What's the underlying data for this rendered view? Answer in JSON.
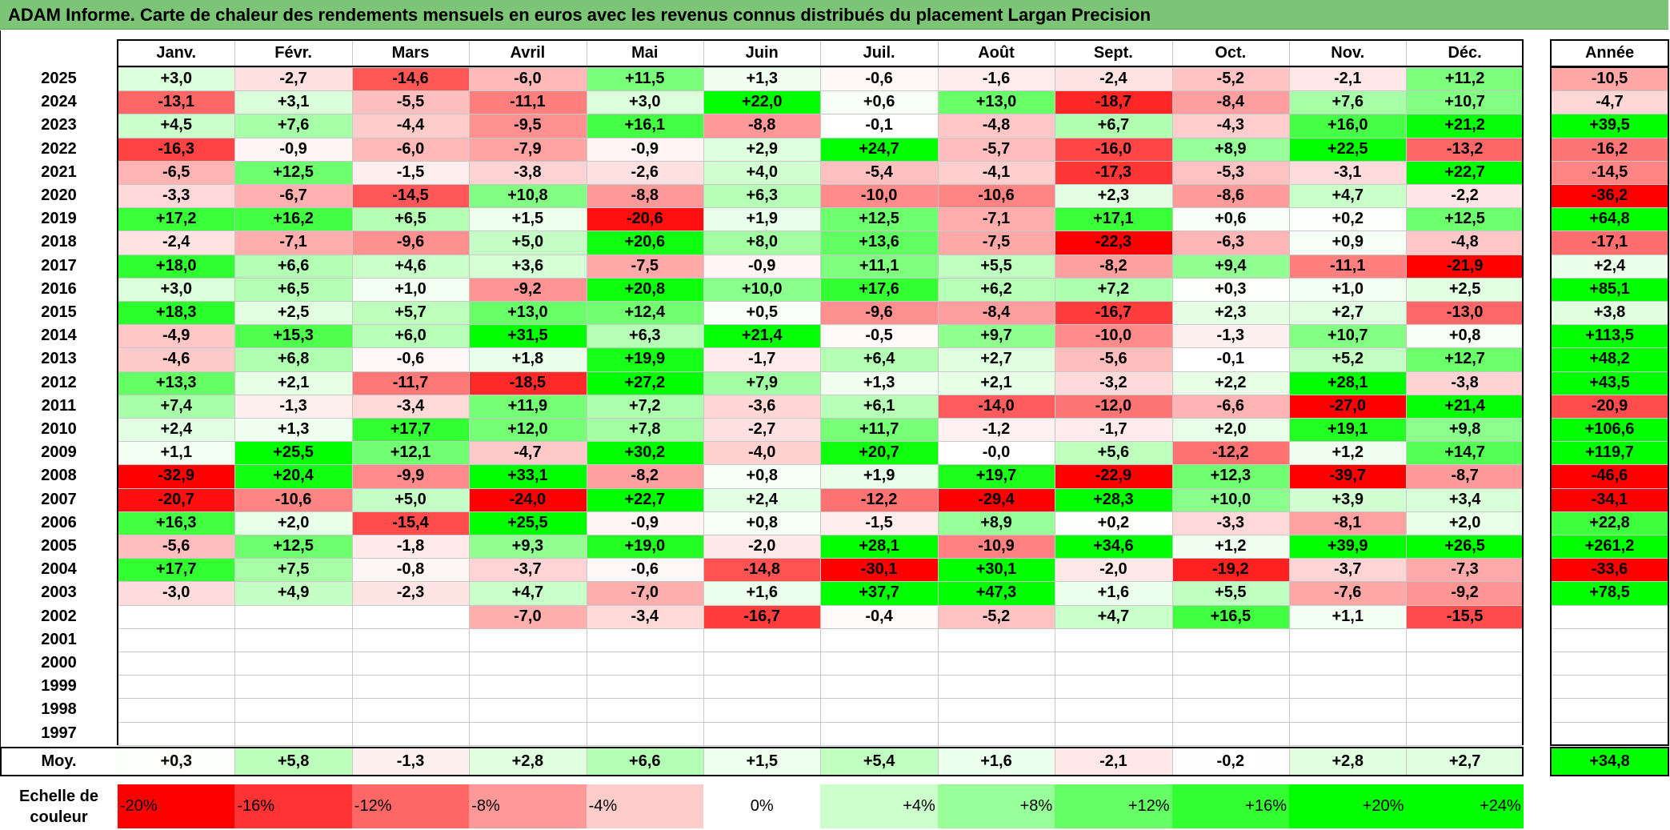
{
  "title": "ADAM Informe. Carte de chaleur des rendements mensuels en euros avec les revenus connus distribués du placement Largan Precision",
  "chart_data": {
    "type": "heatmap",
    "months": [
      "Janv.",
      "Févr.",
      "Mars",
      "Avril",
      "Mai",
      "Juin",
      "Juil.",
      "Août",
      "Sept.",
      "Oct.",
      "Nov.",
      "Déc."
    ],
    "year_header": "Année",
    "rows": [
      {
        "year": "2025",
        "values": [
          "+3,0",
          "-2,7",
          "-14,6",
          "-6,0",
          "+11,5",
          "+1,3",
          "-0,6",
          "-1,6",
          "-2,4",
          "-5,2",
          "-2,1",
          "+11,2"
        ],
        "annual": "-10,5"
      },
      {
        "year": "2024",
        "values": [
          "-13,1",
          "+3,1",
          "-5,5",
          "-11,1",
          "+3,0",
          "+22,0",
          "+0,6",
          "+13,0",
          "-18,7",
          "-8,4",
          "+7,6",
          "+10,7"
        ],
        "annual": "-4,7"
      },
      {
        "year": "2023",
        "values": [
          "+4,5",
          "+7,6",
          "-4,4",
          "-9,5",
          "+16,1",
          "-8,8",
          "-0,1",
          "-4,8",
          "+6,7",
          "-4,3",
          "+16,0",
          "+21,2"
        ],
        "annual": "+39,5"
      },
      {
        "year": "2022",
        "values": [
          "-16,3",
          "-0,9",
          "-6,0",
          "-7,9",
          "-0,9",
          "+2,9",
          "+24,7",
          "-5,7",
          "-16,0",
          "+8,9",
          "+22,5",
          "-13,2"
        ],
        "annual": "-16,2"
      },
      {
        "year": "2021",
        "values": [
          "-6,5",
          "+12,5",
          "-1,5",
          "-3,8",
          "-2,6",
          "+4,0",
          "-5,4",
          "-4,1",
          "-17,3",
          "-5,3",
          "-3,1",
          "+22,7"
        ],
        "annual": "-14,5"
      },
      {
        "year": "2020",
        "values": [
          "-3,3",
          "-6,7",
          "-14,5",
          "+10,8",
          "-8,8",
          "+6,3",
          "-10,0",
          "-10,6",
          "+2,3",
          "-8,6",
          "+4,7",
          "-2,2"
        ],
        "annual": "-36,2"
      },
      {
        "year": "2019",
        "values": [
          "+17,2",
          "+16,2",
          "+6,5",
          "+1,5",
          "-20,6",
          "+1,9",
          "+12,5",
          "-7,1",
          "+17,1",
          "+0,6",
          "+0,2",
          "+12,5"
        ],
        "annual": "+64,8"
      },
      {
        "year": "2018",
        "values": [
          "-2,4",
          "-7,1",
          "-9,6",
          "+5,0",
          "+20,6",
          "+8,0",
          "+13,6",
          "-7,5",
          "-22,3",
          "-6,3",
          "+0,9",
          "-4,8"
        ],
        "annual": "-17,1"
      },
      {
        "year": "2017",
        "values": [
          "+18,0",
          "+6,6",
          "+4,6",
          "+3,6",
          "-7,5",
          "-0,9",
          "+11,1",
          "+5,5",
          "-8,2",
          "+9,4",
          "-11,1",
          "-21,9"
        ],
        "annual": "+2,4"
      },
      {
        "year": "2016",
        "values": [
          "+3,0",
          "+6,5",
          "+1,0",
          "-9,2",
          "+20,8",
          "+10,0",
          "+17,6",
          "+6,2",
          "+7,2",
          "+0,3",
          "+1,0",
          "+2,5"
        ],
        "annual": "+85,1"
      },
      {
        "year": "2015",
        "values": [
          "+18,3",
          "+2,5",
          "+5,7",
          "+13,0",
          "+12,4",
          "+0,5",
          "-9,6",
          "-8,4",
          "-16,7",
          "+2,3",
          "+2,7",
          "-13,0"
        ],
        "annual": "+3,8"
      },
      {
        "year": "2014",
        "values": [
          "-4,9",
          "+15,3",
          "+6,0",
          "+31,5",
          "+6,3",
          "+21,4",
          "-0,5",
          "+9,7",
          "-10,0",
          "-1,3",
          "+10,7",
          "+0,8"
        ],
        "annual": "+113,5"
      },
      {
        "year": "2013",
        "values": [
          "-4,6",
          "+6,8",
          "-0,6",
          "+1,8",
          "+19,9",
          "-1,7",
          "+6,4",
          "+2,7",
          "-5,6",
          "-0,1",
          "+5,2",
          "+12,7"
        ],
        "annual": "+48,2"
      },
      {
        "year": "2012",
        "values": [
          "+13,3",
          "+2,1",
          "-11,7",
          "-18,5",
          "+27,2",
          "+7,9",
          "+1,3",
          "+2,1",
          "-3,2",
          "+2,2",
          "+28,1",
          "-3,8"
        ],
        "annual": "+43,5"
      },
      {
        "year": "2011",
        "values": [
          "+7,4",
          "-1,3",
          "-3,4",
          "+11,9",
          "+7,2",
          "-3,6",
          "+6,1",
          "-14,0",
          "-12,0",
          "-6,6",
          "-27,0",
          "+21,4"
        ],
        "annual": "-20,9"
      },
      {
        "year": "2010",
        "values": [
          "+2,4",
          "+1,3",
          "+17,7",
          "+12,0",
          "+7,8",
          "-2,7",
          "+11,7",
          "-1,2",
          "-1,7",
          "+2,0",
          "+19,1",
          "+9,8"
        ],
        "annual": "+106,6"
      },
      {
        "year": "2009",
        "values": [
          "+1,1",
          "+25,5",
          "+12,1",
          "-4,7",
          "+30,2",
          "-4,0",
          "+20,7",
          "-0,0",
          "+5,6",
          "-12,2",
          "+1,2",
          "+14,7"
        ],
        "annual": "+119,7"
      },
      {
        "year": "2008",
        "values": [
          "-32,9",
          "+20,4",
          "-9,9",
          "+33,1",
          "-8,2",
          "+0,8",
          "+1,9",
          "+19,7",
          "-22,9",
          "+12,3",
          "-39,7",
          "-8,7"
        ],
        "annual": "-46,6"
      },
      {
        "year": "2007",
        "values": [
          "-20,7",
          "-10,6",
          "+5,0",
          "-24,0",
          "+22,7",
          "+2,4",
          "-12,2",
          "-29,4",
          "+28,3",
          "+10,0",
          "+3,9",
          "+3,4"
        ],
        "annual": "-34,1"
      },
      {
        "year": "2006",
        "values": [
          "+16,3",
          "+2,0",
          "-15,4",
          "+25,5",
          "-0,9",
          "+0,8",
          "-1,5",
          "+8,9",
          "+0,2",
          "-3,3",
          "-8,1",
          "+2,0"
        ],
        "annual": "+22,8"
      },
      {
        "year": "2005",
        "values": [
          "-5,6",
          "+12,5",
          "-1,8",
          "+9,3",
          "+19,0",
          "-2,0",
          "+28,1",
          "-10,9",
          "+34,6",
          "+1,2",
          "+39,9",
          "+26,5"
        ],
        "annual": "+261,2"
      },
      {
        "year": "2004",
        "values": [
          "+17,7",
          "+7,5",
          "-0,8",
          "-3,7",
          "-0,6",
          "-14,8",
          "-30,1",
          "+30,1",
          "-2,0",
          "-19,2",
          "-3,7",
          "-7,3"
        ],
        "annual": "-33,6"
      },
      {
        "year": "2003",
        "values": [
          "-3,0",
          "+4,9",
          "-2,3",
          "+4,7",
          "-7,0",
          "+1,6",
          "+37,7",
          "+47,3",
          "+1,6",
          "+5,5",
          "-7,6",
          "-9,2"
        ],
        "annual": "+78,5"
      },
      {
        "year": "2002",
        "values": [
          "",
          "",
          "",
          "-7,0",
          "-3,4",
          "-16,7",
          "-0,4",
          "-5,2",
          "+4,7",
          "+16,5",
          "+1,1",
          "-15,5"
        ],
        "annual": ""
      },
      {
        "year": "2001",
        "values": [
          "",
          "",
          "",
          "",
          "",
          "",
          "",
          "",
          "",
          "",
          "",
          ""
        ],
        "annual": ""
      },
      {
        "year": "2000",
        "values": [
          "",
          "",
          "",
          "",
          "",
          "",
          "",
          "",
          "",
          "",
          "",
          ""
        ],
        "annual": ""
      },
      {
        "year": "1999",
        "values": [
          "",
          "",
          "",
          "",
          "",
          "",
          "",
          "",
          "",
          "",
          "",
          ""
        ],
        "annual": ""
      },
      {
        "year": "1998",
        "values": [
          "",
          "",
          "",
          "",
          "",
          "",
          "",
          "",
          "",
          "",
          "",
          ""
        ],
        "annual": ""
      },
      {
        "year": "1997",
        "values": [
          "",
          "",
          "",
          "",
          "",
          "",
          "",
          "",
          "",
          "",
          "",
          ""
        ],
        "annual": ""
      }
    ],
    "average": {
      "label": "Moy.",
      "values": [
        "+0,3",
        "+5,8",
        "-1,3",
        "+2,8",
        "+6,6",
        "+1,5",
        "+5,4",
        "+1,6",
        "-2,1",
        "-0,2",
        "+2,8",
        "+2,7"
      ],
      "annual": "+34,8"
    },
    "scale": {
      "label": "Echelle de couleur",
      "items": [
        "-20%",
        "-16%",
        "-12%",
        "-8%",
        "-4%",
        "0%",
        "+4%",
        "+8%",
        "+12%",
        "+16%",
        "+20%",
        "+24%"
      ]
    },
    "colors": {
      "red": "#ff0000",
      "green": "#00ff00",
      "neutral": "#ffffff",
      "title_bg": "#7cc576"
    }
  }
}
